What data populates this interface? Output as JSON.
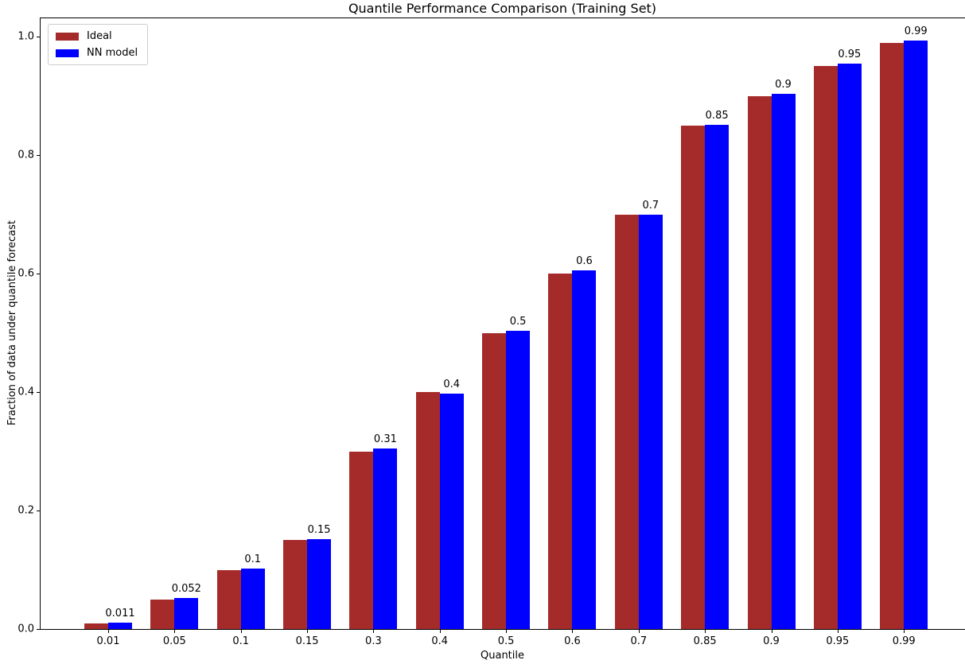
{
  "figure": {
    "title": "Quantile Performance Comparison (Training Set)",
    "xlabel": "Quantile",
    "ylabel": "Fraction of data under quantile forecast"
  },
  "chart_data": {
    "type": "bar",
    "title": "Quantile Performance Comparison (Training Set)",
    "xlabel": "Quantile",
    "ylabel": "Fraction of data under quantile forecast",
    "categories": [
      "0.01",
      "0.05",
      "0.1",
      "0.15",
      "0.3",
      "0.4",
      "0.5",
      "0.6",
      "0.7",
      "0.85",
      "0.9",
      "0.95",
      "0.99"
    ],
    "series": [
      {
        "name": "Ideal",
        "color": "#A52A2A",
        "values": [
          0.01,
          0.05,
          0.1,
          0.15,
          0.3,
          0.4,
          0.5,
          0.6,
          0.7,
          0.85,
          0.9,
          0.95,
          0.99
        ]
      },
      {
        "name": "NN model",
        "color": "#0000FF",
        "values": [
          0.011,
          0.052,
          0.102,
          0.152,
          0.305,
          0.398,
          0.503,
          0.605,
          0.7,
          0.851,
          0.903,
          0.955,
          0.993
        ]
      }
    ],
    "bar_value_labels": [
      "0.011",
      "0.052",
      "0.1",
      "0.15",
      "0.31",
      "0.4",
      "0.5",
      "0.6",
      "0.7",
      "0.85",
      "0.9",
      "0.95",
      "0.99"
    ],
    "ytick_labels": [
      "0.0",
      "0.2",
      "0.4",
      "0.6",
      "0.8",
      "1.0"
    ],
    "ylim": [
      0.0,
      1.031
    ],
    "grid": false,
    "legend_position": "upper left",
    "spine_color": "#000000",
    "background_color": "#ffffff"
  }
}
